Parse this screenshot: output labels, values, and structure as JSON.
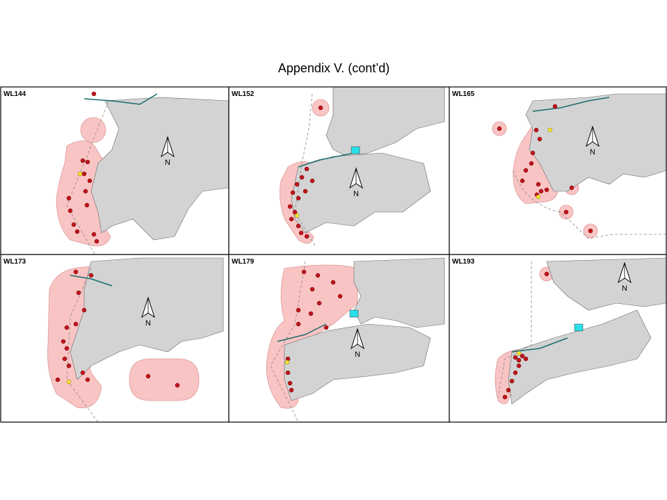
{
  "title": "Appendix V.  (cont’d)",
  "panels": [
    {
      "label": "WL144",
      "north": "N"
    },
    {
      "label": "WL152",
      "north": "N"
    },
    {
      "label": "WL165",
      "north": "N"
    },
    {
      "label": "WL173",
      "north": "N"
    },
    {
      "label": "WL179",
      "north": "N"
    },
    {
      "label": "WL193",
      "north": "N"
    }
  ]
}
